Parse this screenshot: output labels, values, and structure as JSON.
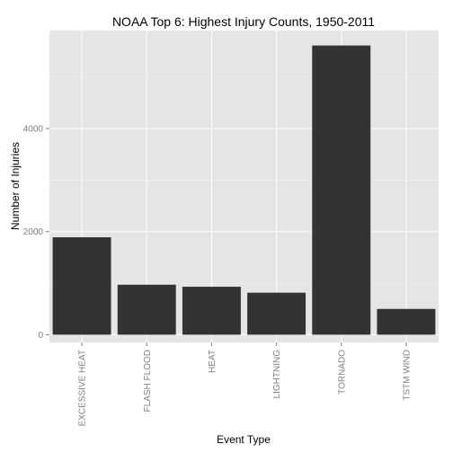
{
  "chart_data": {
    "type": "bar",
    "title": "NOAA Top 6: Highest Injury Counts, 1950-2011",
    "xlabel": "Event Type",
    "ylabel": "Number of Injuries",
    "categories": [
      "EXCESSIVE HEAT",
      "FLASH FLOOD",
      "HEAT",
      "LIGHTNING",
      "TORNADO",
      "TSTM WIND"
    ],
    "values": [
      1890,
      970,
      930,
      815,
      5610,
      500
    ],
    "ylim": [
      -150,
      5900
    ],
    "y_ticks": [
      0,
      2000,
      4000
    ],
    "y_tick_labels": [
      "0",
      "2000",
      "4000"
    ],
    "grid": true,
    "legend": "none",
    "colors": {
      "bar": "#333333",
      "panel": "#e5e5e5",
      "grid": "#ffffff"
    }
  }
}
